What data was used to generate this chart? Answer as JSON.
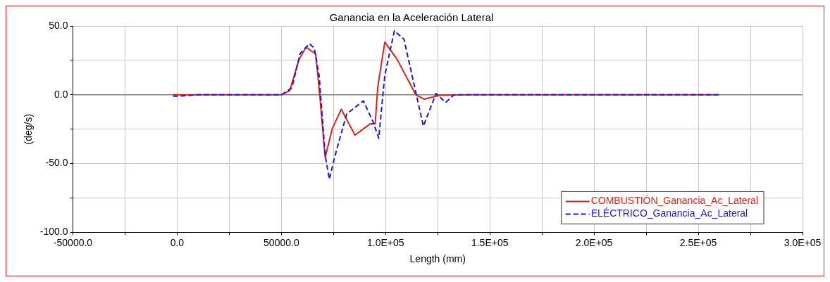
{
  "chart_data": {
    "type": "line",
    "title": "Ganancia en la Aceleración Lateral",
    "xlabel": "Length (mm)",
    "ylabel": "(deg/s)",
    "xlim": [
      -50000,
      300000
    ],
    "xticks": [
      {
        "value": -50000,
        "label": "-50000.0"
      },
      {
        "value": -25000,
        "label": null
      },
      {
        "value": 0,
        "label": "0.0"
      },
      {
        "value": 25000,
        "label": null
      },
      {
        "value": 50000,
        "label": "50000.0"
      },
      {
        "value": 75000,
        "label": null
      },
      {
        "value": 100000,
        "label": "1.0E+05"
      },
      {
        "value": 125000,
        "label": null
      },
      {
        "value": 150000,
        "label": "1.5E+05"
      },
      {
        "value": 175000,
        "label": null
      },
      {
        "value": 200000,
        "label": "2.0E+05"
      },
      {
        "value": 225000,
        "label": null
      },
      {
        "value": 250000,
        "label": "2.5E+05"
      },
      {
        "value": 275000,
        "label": null
      },
      {
        "value": 300000,
        "label": "3.0E+05"
      }
    ],
    "ylim": [
      -100,
      50
    ],
    "yticks": [
      {
        "value": -100,
        "label": "-100.0"
      },
      {
        "value": -75,
        "label": null
      },
      {
        "value": -50,
        "label": "-50.0"
      },
      {
        "value": -25,
        "label": null
      },
      {
        "value": 0,
        "label": "0.0"
      },
      {
        "value": 25,
        "label": null
      },
      {
        "value": 50,
        "label": "50.0"
      }
    ],
    "grid": true,
    "legend": "bottom right",
    "marker": "none",
    "ref_lines": [
      {
        "axis": "y",
        "value": 0,
        "label": null,
        "color": "#808080"
      }
    ],
    "series": [
      {
        "name": "COMBUSTIÓN_Ganancia_Ac_Lateral",
        "color": "#e0201c",
        "line_style": "solid",
        "x": [
          -2000,
          10000,
          30000,
          50000,
          54000,
          58400,
          61800,
          66400,
          68100,
          71000,
          74400,
          78700,
          85300,
          92700,
          95000,
          96200,
          99600,
          105300,
          114500,
          118500,
          125900,
          140000,
          259000
        ],
        "values": [
          0,
          0,
          0,
          0,
          3,
          25.4,
          34.6,
          29.8,
          5,
          -45.6,
          -24.6,
          -10.5,
          -29.3,
          -21,
          -21,
          5.3,
          38.3,
          26.3,
          0,
          -3.2,
          -0.4,
          0,
          0
        ]
      },
      {
        "name": "ELÉCTRICO_Ganancia_Ac_Lateral",
        "color": "#1a1ac8",
        "line_style": "dashed",
        "x": [
          -2000,
          1000,
          10000,
          30000,
          50000,
          55000,
          59000,
          63500,
          65800,
          68100,
          71000,
          73000,
          75500,
          81300,
          89300,
          93900,
          96700,
          99600,
          104200,
          108800,
          114500,
          118100,
          124200,
          128800,
          132800,
          140000,
          260000
        ],
        "values": [
          -1,
          -1,
          0,
          0,
          0,
          5,
          30,
          37.2,
          33.8,
          14,
          -43.8,
          -61.4,
          -45.6,
          -14,
          -4.4,
          -19.3,
          -31.6,
          14,
          46.5,
          40.4,
          1.7,
          -22.8,
          0.9,
          -5.6,
          0,
          0,
          0
        ]
      }
    ]
  }
}
